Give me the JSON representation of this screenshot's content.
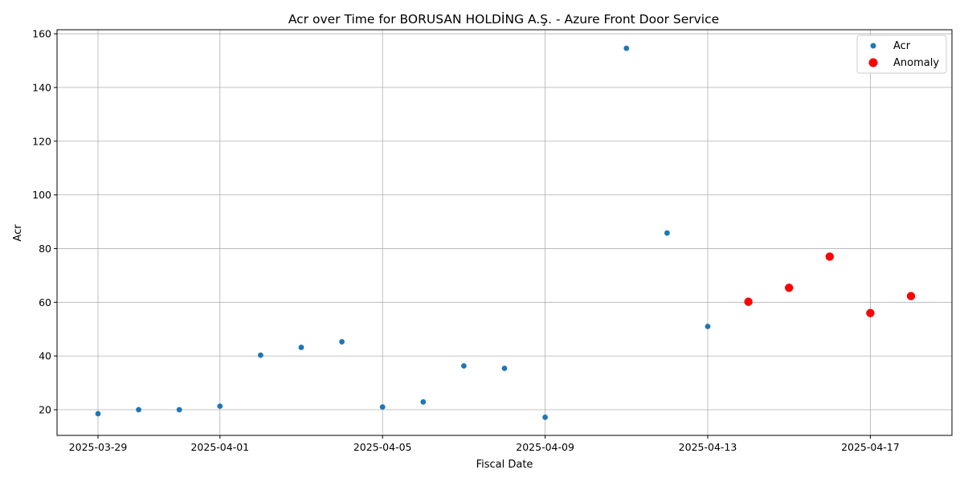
{
  "chart_data": {
    "type": "scatter",
    "title": "Acr over Time for BORUSAN HOLDİNG A.Ş. - Azure Front Door Service",
    "xlabel": "Fiscal Date",
    "ylabel": "Acr",
    "x_ticks": [
      "2025-03-29",
      "2025-04-01",
      "2025-04-05",
      "2025-04-09",
      "2025-04-13",
      "2025-04-17"
    ],
    "y_ticks": [
      20,
      40,
      60,
      80,
      100,
      120,
      140,
      160
    ],
    "xlim": [
      "2025-03-28",
      "2025-04-18"
    ],
    "ylim": [
      10,
      162
    ],
    "grid": true,
    "legend_position": "top-right",
    "series": [
      {
        "name": "Acr",
        "color": "#1f77b4",
        "marker": "small-circle",
        "points": [
          {
            "x": "2025-03-29",
            "y": 18.5
          },
          {
            "x": "2025-03-30",
            "y": 20.0
          },
          {
            "x": "2025-03-31",
            "y": 20.0
          },
          {
            "x": "2025-04-01",
            "y": 21.3
          },
          {
            "x": "2025-04-02",
            "y": 40.3
          },
          {
            "x": "2025-04-03",
            "y": 43.2
          },
          {
            "x": "2025-04-04",
            "y": 45.3
          },
          {
            "x": "2025-04-05",
            "y": 21.0
          },
          {
            "x": "2025-04-06",
            "y": 22.9
          },
          {
            "x": "2025-04-07",
            "y": 36.3
          },
          {
            "x": "2025-04-08",
            "y": 35.4
          },
          {
            "x": "2025-04-09",
            "y": 17.2
          },
          {
            "x": "2025-04-11",
            "y": 154.6
          },
          {
            "x": "2025-04-12",
            "y": 85.8
          },
          {
            "x": "2025-04-13",
            "y": 51.0
          }
        ]
      },
      {
        "name": "Anomaly",
        "color": "#ff0000",
        "marker": "large-circle",
        "points": [
          {
            "x": "2025-04-14",
            "y": 60.2
          },
          {
            "x": "2025-04-15",
            "y": 65.4
          },
          {
            "x": "2025-04-16",
            "y": 77.0
          },
          {
            "x": "2025-04-17",
            "y": 56.0
          },
          {
            "x": "2025-04-18",
            "y": 62.3
          }
        ]
      }
    ]
  }
}
